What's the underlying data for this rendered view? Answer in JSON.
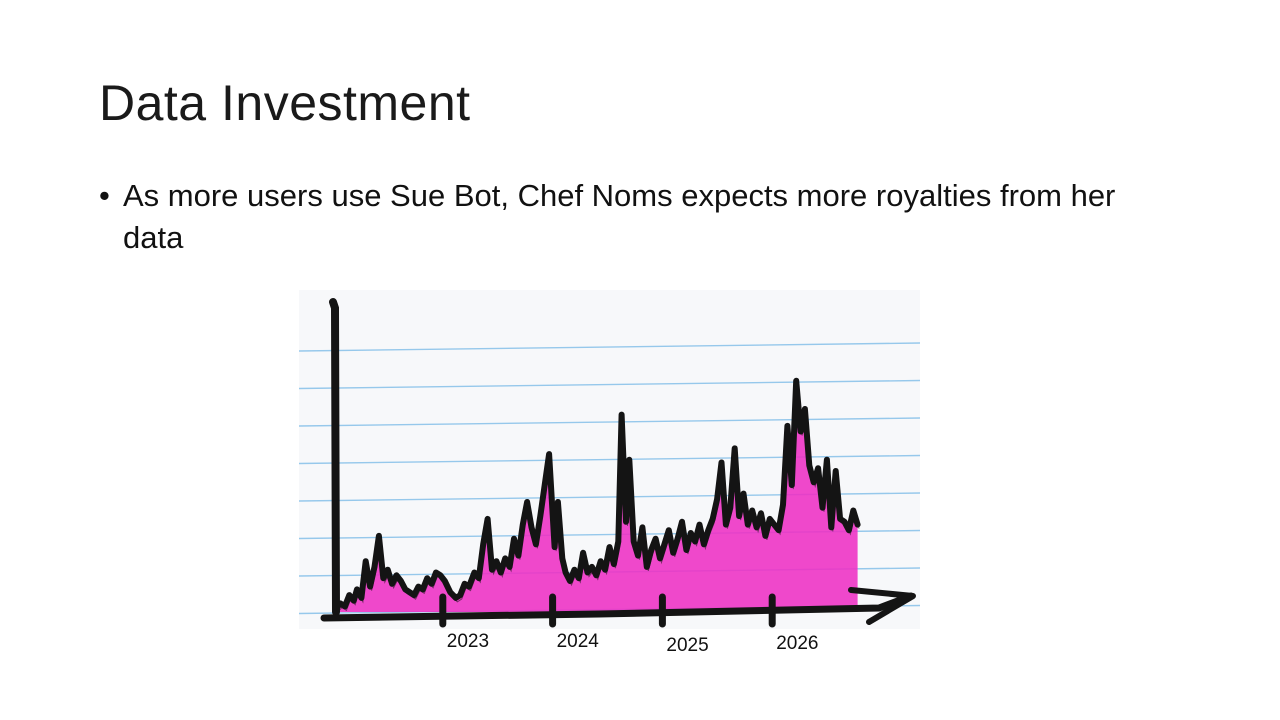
{
  "slide": {
    "title": "Data Investment",
    "bullets": [
      {
        "marker": "•",
        "text": "As more users use Sue Bot, Chef Noms expects more royalties from her data"
      }
    ]
  },
  "colors": {
    "ink": "#141414",
    "fill": "#ee2fc4",
    "ruled_line": "#8cc3ea",
    "paper": "#f7f8fa"
  },
  "chart_data": {
    "type": "area",
    "title": "",
    "xlabel": "",
    "ylabel": "",
    "style": "hand-drawn marker sketch on lined paper",
    "xlim": [
      2022,
      2027
    ],
    "ylim": [
      0,
      10
    ],
    "x_ticks": [
      2023,
      2024,
      2025,
      2026
    ],
    "x_tick_labels": [
      "2023",
      "2024",
      "2025",
      "2026"
    ],
    "grid": true,
    "series": [
      {
        "x": [
          2022.0,
          2022.05,
          2022.09,
          2022.13,
          2022.17,
          2022.2,
          2022.24,
          2022.28,
          2022.32,
          2022.36,
          2022.4,
          2022.44,
          2022.48,
          2022.52,
          2022.56,
          2022.6,
          2022.64,
          2022.68,
          2022.72,
          2022.76,
          2022.8,
          2022.84,
          2022.88,
          2022.92,
          2022.96,
          2023.0,
          2023.05,
          2023.1,
          2023.14,
          2023.18,
          2023.22,
          2023.27,
          2023.31,
          2023.35,
          2023.39,
          2023.43,
          2023.47,
          2023.51,
          2023.55,
          2023.59,
          2023.63,
          2023.67,
          2023.71,
          2023.75,
          2023.79,
          2023.83,
          2023.87,
          2023.91,
          2023.95,
          2024.0,
          2024.03,
          2024.07,
          2024.1,
          2024.14,
          2024.18,
          2024.22,
          2024.26,
          2024.3,
          2024.34,
          2024.38,
          2024.42,
          2024.46,
          2024.5,
          2024.54,
          2024.58,
          2024.61,
          2024.65,
          2024.68,
          2024.72,
          2024.76,
          2024.8,
          2024.84,
          2024.88,
          2024.92,
          2024.96,
          2025.0,
          2025.04,
          2025.08,
          2025.12,
          2025.16,
          2025.2,
          2025.24,
          2025.28,
          2025.32,
          2025.36,
          2025.4,
          2025.44,
          2025.48,
          2025.52,
          2025.56,
          2025.6,
          2025.64,
          2025.68,
          2025.72,
          2025.76,
          2025.8,
          2025.84,
          2025.88,
          2025.92,
          2025.96,
          2026.0,
          2026.04,
          2026.08,
          2026.12,
          2026.16,
          2026.2,
          2026.24,
          2026.28,
          2026.32,
          2026.36,
          2026.4,
          2026.44,
          2026.48,
          2026.52,
          2026.56,
          2026.6,
          2026.64,
          2026.68,
          2026.72,
          2026.76
        ],
        "y": [
          0.1,
          0.3,
          0.2,
          0.6,
          0.4,
          0.8,
          0.5,
          1.8,
          0.9,
          1.6,
          2.7,
          1.2,
          1.5,
          1.0,
          1.3,
          1.1,
          0.8,
          0.7,
          0.6,
          0.9,
          0.8,
          1.2,
          1.0,
          1.4,
          1.3,
          1.1,
          0.7,
          0.5,
          0.6,
          1.0,
          0.9,
          1.4,
          1.2,
          2.4,
          3.3,
          1.5,
          1.8,
          1.4,
          1.9,
          1.6,
          2.6,
          2.0,
          3.1,
          3.9,
          3.0,
          2.4,
          3.4,
          4.5,
          5.6,
          2.3,
          3.9,
          1.9,
          1.4,
          1.1,
          1.5,
          1.2,
          2.1,
          1.4,
          1.6,
          1.3,
          1.8,
          1.5,
          2.3,
          1.7,
          2.5,
          7.0,
          3.2,
          5.4,
          2.5,
          2.0,
          3.0,
          1.6,
          2.2,
          2.6,
          1.9,
          2.4,
          2.9,
          2.1,
          2.6,
          3.2,
          2.2,
          2.8,
          2.5,
          3.1,
          2.4,
          2.9,
          3.3,
          4.0,
          5.3,
          3.1,
          3.7,
          5.8,
          3.4,
          4.2,
          3.1,
          3.6,
          3.0,
          3.5,
          2.7,
          3.3,
          3.1,
          2.9,
          3.8,
          6.6,
          4.5,
          8.2,
          6.4,
          7.2,
          5.2,
          4.6,
          5.1,
          3.7,
          5.4,
          3.0,
          5.0,
          3.3,
          3.2,
          2.9,
          3.6,
          3.1
        ]
      }
    ]
  }
}
